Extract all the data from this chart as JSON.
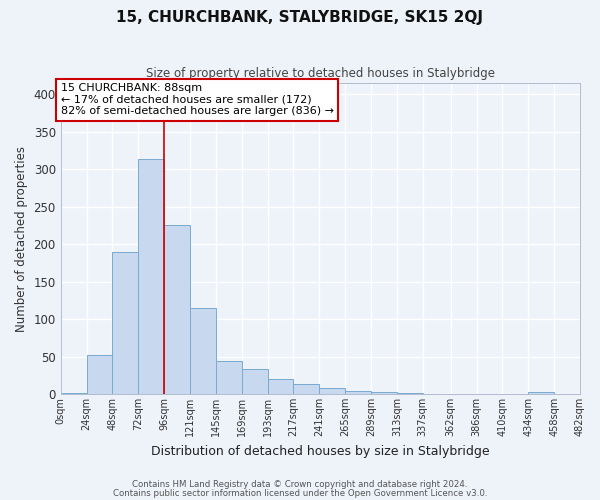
{
  "title": "15, CHURCHBANK, STALYBRIDGE, SK15 2QJ",
  "subtitle": "Size of property relative to detached houses in Stalybridge",
  "xlabel": "Distribution of detached houses by size in Stalybridge",
  "ylabel": "Number of detached properties",
  "bar_color": "#c8d8ee",
  "bar_edge_color": "#7aaad0",
  "background_color": "#eef2f9",
  "grid_color": "#ffffff",
  "bin_starts": [
    0,
    24,
    48,
    72,
    96,
    120,
    144,
    168,
    192,
    216,
    240,
    264,
    288,
    312,
    336,
    362,
    386,
    410,
    434,
    458
  ],
  "bin_width": 24,
  "bin_labels": [
    "0sqm",
    "24sqm",
    "48sqm",
    "72sqm",
    "96sqm",
    "121sqm",
    "145sqm",
    "169sqm",
    "193sqm",
    "217sqm",
    "241sqm",
    "265sqm",
    "289sqm",
    "313sqm",
    "337sqm",
    "362sqm",
    "386sqm",
    "410sqm",
    "434sqm",
    "458sqm",
    "482sqm"
  ],
  "bar_heights": [
    2,
    52,
    189,
    314,
    226,
    115,
    44,
    33,
    20,
    14,
    8,
    4,
    3,
    2,
    0,
    0,
    0,
    0,
    3,
    0
  ],
  "vline_x": 96,
  "vline_color": "#cc0000",
  "annotation_text": "15 CHURCHBANK: 88sqm\n← 17% of detached houses are smaller (172)\n82% of semi-detached houses are larger (836) →",
  "annotation_box_color": "#ffffff",
  "annotation_box_edge": "#cc0000",
  "ylim": [
    0,
    415
  ],
  "yticks": [
    0,
    50,
    100,
    150,
    200,
    250,
    300,
    350,
    400
  ],
  "footnote1": "Contains HM Land Registry data © Crown copyright and database right 2024.",
  "footnote2": "Contains public sector information licensed under the Open Government Licence v3.0."
}
